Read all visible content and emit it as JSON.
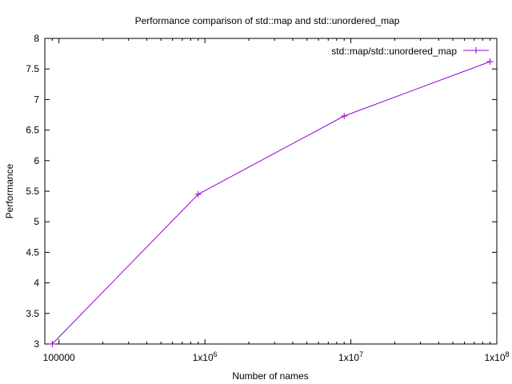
{
  "chart_data": {
    "type": "line",
    "title": "Performance comparison of std::map and std::unordered_map",
    "xlabel": "Number of names",
    "ylabel": "Performance",
    "x_scale": "log10",
    "xlim": [
      80000,
      100000000
    ],
    "ylim": [
      3,
      8
    ],
    "x_ticks": [
      {
        "value": 100000,
        "label": "100000"
      },
      {
        "value": 1000000,
        "label": "1x10",
        "sup": "6"
      },
      {
        "value": 10000000,
        "label": "1x10",
        "sup": "7"
      },
      {
        "value": 100000000,
        "label": "1x10",
        "sup": "8"
      }
    ],
    "y_ticks": [
      {
        "value": 3,
        "label": "3"
      },
      {
        "value": 3.5,
        "label": "3.5"
      },
      {
        "value": 4,
        "label": "4"
      },
      {
        "value": 4.5,
        "label": "4.5"
      },
      {
        "value": 5,
        "label": "5"
      },
      {
        "value": 5.5,
        "label": "5.5"
      },
      {
        "value": 6,
        "label": "6"
      },
      {
        "value": 6.5,
        "label": "6.5"
      },
      {
        "value": 7,
        "label": "7"
      },
      {
        "value": 7.5,
        "label": "7.5"
      },
      {
        "value": 8,
        "label": "8"
      }
    ],
    "grid": false,
    "legend_position": "top-right",
    "series": [
      {
        "name": "std::map/std::unordered_map",
        "color": "#9400d3",
        "marker": "plus",
        "x": [
          90000,
          900000,
          9000000,
          90000000
        ],
        "y": [
          3.0,
          5.45,
          6.73,
          7.62
        ]
      }
    ]
  }
}
